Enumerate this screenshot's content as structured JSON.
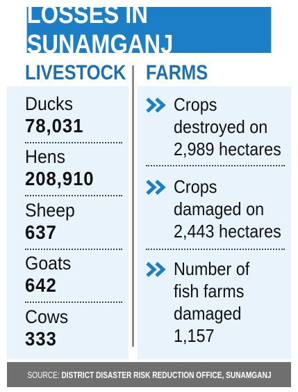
{
  "header": {
    "title": "LOSSES IN SUNAMGANJ"
  },
  "livestock": {
    "title": "LIVESTOCK",
    "items": [
      {
        "name": "Ducks",
        "count": "78,031"
      },
      {
        "name": "Hens",
        "count": "208,910"
      },
      {
        "name": "Sheep",
        "count": "637"
      },
      {
        "name": "Goats",
        "count": "642"
      },
      {
        "name": "Cows",
        "count": "333"
      }
    ]
  },
  "farms": {
    "title": "FARMS",
    "items": [
      {
        "lines": [
          "Crops",
          "destroyed on",
          "2,989 hectares"
        ]
      },
      {
        "lines": [
          "Crops",
          "damaged on",
          "2,443 hectares"
        ]
      },
      {
        "lines": [
          "Number of",
          "fish farms",
          "damaged",
          "1,157"
        ]
      }
    ]
  },
  "footer": {
    "label": "SOURCE:",
    "source": "DISTRICT DISASTER RISK REDUCTION OFFICE, SUNAMGANJ"
  },
  "colors": {
    "header_bg": "#1c7ec4",
    "title_text": "#1c6fb0",
    "panel_bg": "#e9f3fb",
    "arrow": "#1c7ec4",
    "footer_bg": "#6f6f6f"
  }
}
